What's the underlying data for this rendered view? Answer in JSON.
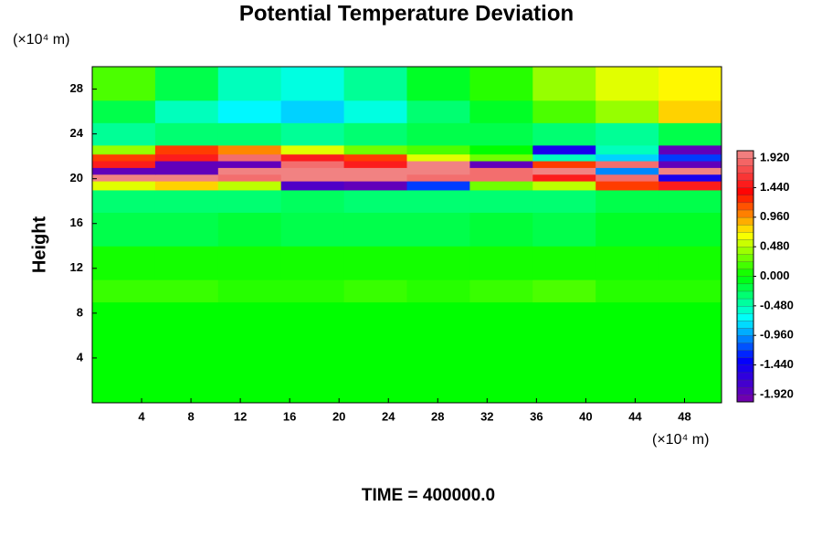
{
  "chart_data": {
    "type": "contour",
    "title": "Potential Temperature Deviation",
    "ylabel": "Height",
    "xunit": "(×10⁴ m)",
    "yunit": "(×10⁴ m)",
    "footer": "TIME = 400000.0",
    "xlim": [
      0,
      51
    ],
    "ylim": [
      0,
      30
    ],
    "xticks": [
      4,
      8,
      12,
      16,
      20,
      24,
      28,
      32,
      36,
      40,
      44,
      48
    ],
    "yticks": [
      4,
      8,
      12,
      16,
      20,
      24,
      28
    ],
    "xbins": [
      0,
      5.1,
      10.2,
      15.3,
      20.4,
      25.5,
      30.6,
      35.7,
      40.8,
      45.9,
      51
    ],
    "ybins": [
      0,
      9,
      11,
      14,
      17,
      19,
      19.8,
      20.4,
      21,
      21.6,
      22.2,
      23,
      25,
      27,
      30
    ],
    "z": [
      [
        0,
        0,
        0,
        0,
        0,
        0,
        0,
        0,
        0,
        0
      ],
      [
        0.15,
        0.15,
        0.1,
        0.1,
        0.15,
        0.1,
        0.15,
        0.2,
        0.1,
        0.1
      ],
      [
        0.05,
        0.05,
        0.05,
        0.05,
        0.05,
        0.05,
        0.05,
        0.05,
        0.05,
        0.05
      ],
      [
        -0.2,
        -0.2,
        -0.15,
        -0.2,
        -0.2,
        -0.2,
        -0.15,
        -0.2,
        -0.1,
        -0.1
      ],
      [
        -0.3,
        -0.3,
        -0.3,
        -0.25,
        -0.3,
        -0.3,
        -0.3,
        -0.3,
        -0.2,
        -0.2
      ],
      [
        0.6,
        0.8,
        0.5,
        -1.8,
        -1.9,
        -1.2,
        0.3,
        0.5,
        1.2,
        1.5
      ],
      [
        2,
        2,
        1.9,
        2,
        2,
        1.9,
        1.9,
        1.5,
        1.9,
        -1.5
      ],
      [
        -1.9,
        -1.9,
        2,
        2,
        2,
        2,
        1.9,
        2,
        -1,
        2
      ],
      [
        1.5,
        -1.9,
        -1.9,
        1.9,
        1.5,
        2,
        -1.9,
        1.2,
        1.9,
        -1.9
      ],
      [
        1.2,
        1.5,
        1.9,
        1.5,
        1.2,
        0.6,
        0.3,
        -0.5,
        -0.8,
        -1.2
      ],
      [
        0.4,
        1.2,
        1,
        0.6,
        0.3,
        0.2,
        0,
        -1.5,
        -0.5,
        -1.9
      ],
      [
        -0.4,
        -0.3,
        -0.3,
        -0.4,
        -0.3,
        -0.2,
        -0.2,
        -0.3,
        -0.4,
        -0.2
      ],
      [
        -0.2,
        -0.5,
        -0.7,
        -0.8,
        -0.6,
        -0.3,
        -0.1,
        0.2,
        0.4,
        0.8
      ],
      [
        0.2,
        -0.2,
        -0.5,
        -0.6,
        -0.4,
        -0.1,
        0.1,
        0.4,
        0.6,
        0.7
      ]
    ],
    "zlim": [
      -2.04,
      2.04
    ],
    "zticks": [
      {
        "value": 1.92,
        "label": "1.920"
      },
      {
        "value": 1.44,
        "label": "1.440"
      },
      {
        "value": 0.96,
        "label": "0.960"
      },
      {
        "value": 0.48,
        "label": "0.480"
      },
      {
        "value": 0,
        "label": "0.000"
      },
      {
        "value": -0.48,
        "label": "-0.480"
      },
      {
        "value": -0.96,
        "label": "-0.960"
      },
      {
        "value": -1.44,
        "label": "-1.440"
      },
      {
        "value": -1.92,
        "label": "-1.920"
      }
    ],
    "colormap": [
      "#7a00a8",
      "#0000ff",
      "#00ffff",
      "#00ff00",
      "#ffff00",
      "#ff0000",
      "#f08a8a"
    ]
  }
}
